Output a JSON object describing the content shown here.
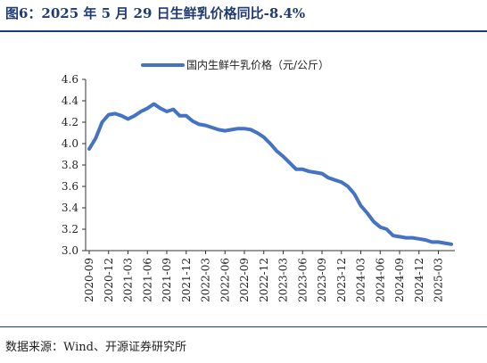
{
  "title": "图6：2025 年 5 月 29 日生鲜乳价格同比-8.4%",
  "source": "数据来源：Wind、开源证券研究所",
  "colors": {
    "line": "#4472c4",
    "title": "#1f3b73"
  },
  "chart_data": {
    "type": "line",
    "legend_position": "top-center",
    "grid": false,
    "ylim": [
      3.0,
      4.6
    ],
    "y_ticks": [
      "3.0",
      "3.2",
      "3.4",
      "3.6",
      "3.8",
      "4.0",
      "4.2",
      "4.4",
      "4.6"
    ],
    "x_ticks": [
      "2020-09",
      "2020-12",
      "2021-03",
      "2021-06",
      "2021-09",
      "2021-12",
      "2022-03",
      "2022-06",
      "2022-09",
      "2022-12",
      "2023-03",
      "2023-06",
      "2023-09",
      "2023-12",
      "2024-03",
      "2024-06",
      "2024-09",
      "2024-12",
      "2025-03"
    ],
    "series": [
      {
        "name": "国内生鲜牛乳价格（元/公斤）",
        "x": [
          "2020-09",
          "2020-10",
          "2020-11",
          "2020-12",
          "2021-01",
          "2021-02",
          "2021-03",
          "2021-04",
          "2021-05",
          "2021-06",
          "2021-07",
          "2021-08",
          "2021-09",
          "2021-10",
          "2021-11",
          "2021-12",
          "2022-01",
          "2022-02",
          "2022-03",
          "2022-04",
          "2022-05",
          "2022-06",
          "2022-07",
          "2022-08",
          "2022-09",
          "2022-10",
          "2022-11",
          "2022-12",
          "2023-01",
          "2023-02",
          "2023-03",
          "2023-04",
          "2023-05",
          "2023-06",
          "2023-07",
          "2023-08",
          "2023-09",
          "2023-10",
          "2023-11",
          "2023-12",
          "2024-01",
          "2024-02",
          "2024-03",
          "2024-04",
          "2024-05",
          "2024-06",
          "2024-07",
          "2024-08",
          "2024-09",
          "2024-10",
          "2024-11",
          "2024-12",
          "2025-01",
          "2025-02",
          "2025-03",
          "2025-04",
          "2025-05"
        ],
        "values": [
          3.95,
          4.05,
          4.2,
          4.27,
          4.28,
          4.26,
          4.23,
          4.26,
          4.3,
          4.33,
          4.37,
          4.33,
          4.3,
          4.32,
          4.26,
          4.26,
          4.21,
          4.18,
          4.17,
          4.15,
          4.13,
          4.12,
          4.13,
          4.14,
          4.14,
          4.13,
          4.1,
          4.06,
          4.0,
          3.93,
          3.88,
          3.82,
          3.76,
          3.76,
          3.74,
          3.73,
          3.72,
          3.68,
          3.66,
          3.64,
          3.6,
          3.53,
          3.42,
          3.35,
          3.27,
          3.22,
          3.2,
          3.14,
          3.13,
          3.12,
          3.12,
          3.11,
          3.1,
          3.08,
          3.08,
          3.07,
          3.06
        ]
      }
    ]
  }
}
